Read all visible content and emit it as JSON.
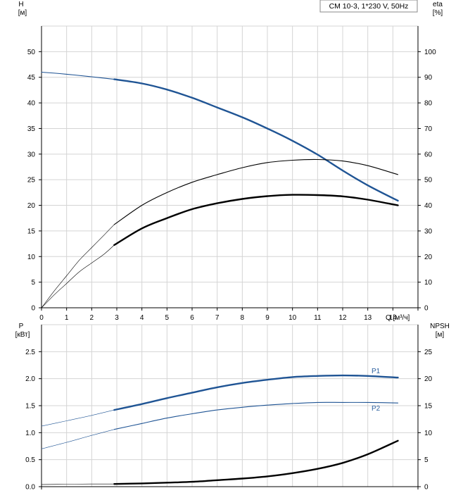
{
  "legend_box": "CM 10-3, 1*230 V, 50Hz",
  "colors": {
    "blue": "#1f5494",
    "black": "#000000",
    "grid": "#d4d4d4",
    "label_blue": "#2a5f9e"
  },
  "chart_data": [
    {
      "type": "line",
      "ylabel_left": "H",
      "ylabel_left_unit": "[м]",
      "ylabel_right": "eta",
      "ylabel_right_unit": "[%]",
      "xlabel": "Q [м³/ч]",
      "xlim": [
        0,
        15
      ],
      "ylim_left": [
        0,
        55
      ],
      "ylim_right": [
        0,
        110
      ],
      "xticks": [
        0,
        1,
        2,
        3,
        4,
        5,
        6,
        7,
        8,
        9,
        10,
        11,
        12,
        13,
        14
      ],
      "yticks_left": [
        0,
        5,
        10,
        15,
        20,
        25,
        30,
        35,
        40,
        45,
        50
      ],
      "yticks_right": [
        0,
        10,
        20,
        30,
        40,
        50,
        60,
        70,
        80,
        90,
        100
      ],
      "grid": true,
      "series": [
        {
          "axis": "left",
          "color": "#1f5494",
          "style": "thin",
          "x": [
            0,
            1,
            2,
            2.9
          ],
          "y": [
            46,
            45.6,
            45.1,
            44.6
          ]
        },
        {
          "axis": "left",
          "color": "#1f5494",
          "style": "thick",
          "x": [
            2.9,
            4,
            5,
            6,
            7,
            8,
            9,
            10,
            11,
            12,
            13,
            14.2
          ],
          "y": [
            44.6,
            43.8,
            42.6,
            41.0,
            39.1,
            37.2,
            35.0,
            32.6,
            29.9,
            26.8,
            23.9,
            20.9
          ]
        },
        {
          "axis": "right",
          "color": "#000000",
          "style": "hair",
          "x": [
            0,
            0.5,
            1,
            1.5,
            2,
            2.5,
            2.9
          ],
          "y": [
            0,
            6.5,
            12.5,
            18.5,
            23.5,
            28.5,
            32.5
          ]
        },
        {
          "axis": "right",
          "color": "#000000",
          "style": "thin",
          "x": [
            2.9,
            4,
            5,
            6,
            7,
            8,
            9,
            10,
            11,
            12,
            13,
            14.2
          ],
          "y": [
            32.5,
            40,
            45,
            49,
            52,
            54.7,
            56.7,
            57.6,
            57.9,
            57.3,
            55.5,
            52
          ]
        },
        {
          "axis": "right",
          "color": "#000000",
          "style": "hair",
          "x": [
            0,
            0.5,
            1,
            1.5,
            2,
            2.5,
            2.9
          ],
          "y": [
            0,
            5,
            9.5,
            14,
            17.5,
            21,
            24.5
          ]
        },
        {
          "axis": "right",
          "color": "#000000",
          "style": "thick",
          "x": [
            2.9,
            4,
            5,
            6,
            7,
            8,
            9,
            10,
            11,
            12,
            13,
            14.2
          ],
          "y": [
            24.5,
            31,
            35,
            38.5,
            40.8,
            42.5,
            43.6,
            44.1,
            44,
            43.5,
            42.2,
            40
          ]
        }
      ]
    },
    {
      "type": "line",
      "ylabel_left": "P",
      "ylabel_left_unit": "[кВт]",
      "ylabel_right": "NPSH",
      "ylabel_right_unit": "[м]",
      "xlim": [
        0,
        15
      ],
      "ylim_left": [
        0,
        3.0
      ],
      "ylim_right": [
        0,
        30
      ],
      "yticks_left": [
        "0.0",
        "0.5",
        "1.0",
        "1.5",
        "2.0",
        "2.5"
      ],
      "yticks_right": [
        0,
        5,
        10,
        15,
        20,
        25
      ],
      "grid": true,
      "series": [
        {
          "axis": "left",
          "color": "#1f5494",
          "style": "hair",
          "x": [
            0,
            1,
            2,
            2.9
          ],
          "y": [
            1.12,
            1.22,
            1.32,
            1.42
          ]
        },
        {
          "axis": "left",
          "color": "#1f5494",
          "style": "thick",
          "name": "P1",
          "x": [
            2.9,
            4,
            5,
            6,
            7,
            8,
            9,
            10,
            11,
            12,
            13,
            14.2
          ],
          "y": [
            1.42,
            1.53,
            1.64,
            1.74,
            1.84,
            1.92,
            1.98,
            2.03,
            2.05,
            2.06,
            2.05,
            2.02
          ]
        },
        {
          "axis": "left",
          "color": "#1f5494",
          "style": "hair",
          "x": [
            0,
            1,
            2,
            2.9
          ],
          "y": [
            0.7,
            0.82,
            0.95,
            1.06
          ]
        },
        {
          "axis": "left",
          "color": "#1f5494",
          "style": "thin",
          "name": "P2",
          "x": [
            2.9,
            4,
            5,
            6,
            7,
            8,
            9,
            10,
            11,
            12,
            13,
            14.2
          ],
          "y": [
            1.06,
            1.17,
            1.27,
            1.35,
            1.42,
            1.47,
            1.51,
            1.54,
            1.56,
            1.56,
            1.56,
            1.55
          ]
        },
        {
          "axis": "right",
          "color": "#000000",
          "style": "hair",
          "x": [
            0,
            1,
            2,
            2.9
          ],
          "y": [
            0.4,
            0.45,
            0.5,
            0.5
          ]
        },
        {
          "axis": "right",
          "color": "#000000",
          "style": "thick",
          "x": [
            2.9,
            4,
            5,
            6,
            7,
            8,
            9,
            10,
            11,
            12,
            13,
            14.2
          ],
          "y": [
            0.5,
            0.6,
            0.75,
            0.9,
            1.2,
            1.5,
            1.9,
            2.5,
            3.3,
            4.4,
            6.0,
            8.5
          ]
        }
      ]
    }
  ]
}
